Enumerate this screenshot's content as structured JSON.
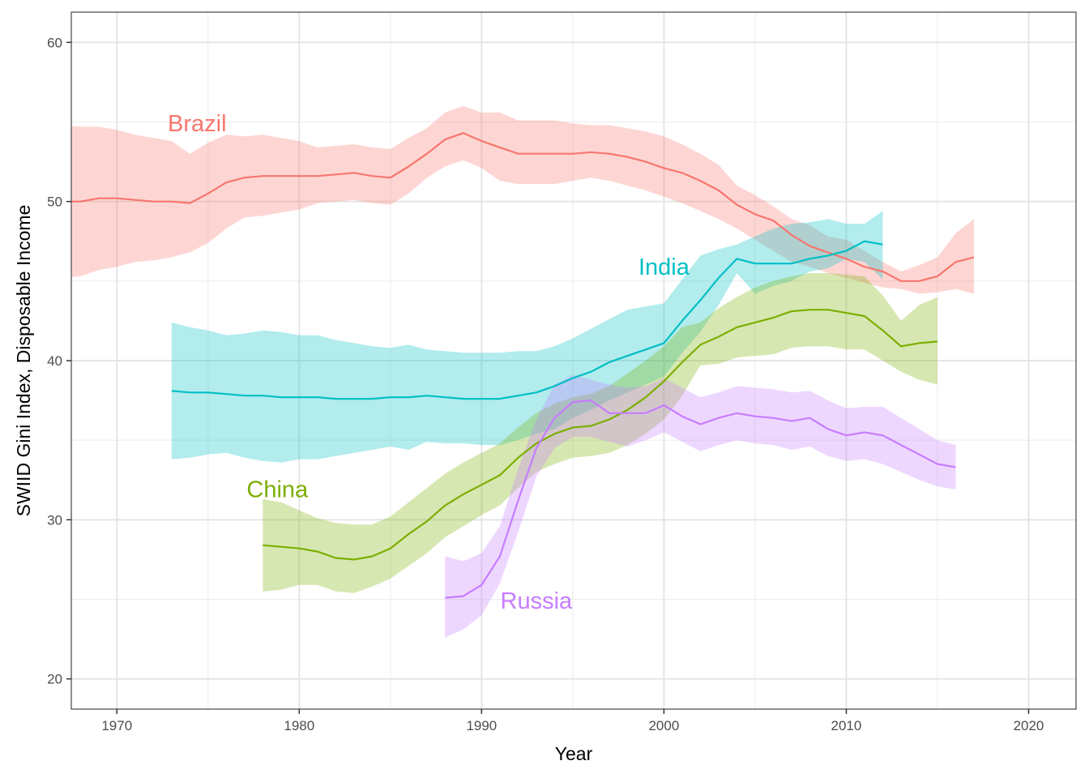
{
  "chart_data": {
    "type": "line",
    "title": "",
    "xlabel": "Year",
    "ylabel": "SWIID Gini Index, Disposable Income",
    "xlim": [
      1967.5,
      2022.6
    ],
    "ylim": [
      18.1,
      61.9
    ],
    "x_ticks": [
      1970,
      1980,
      1990,
      2000,
      2010,
      2020
    ],
    "x_tick_labels": [
      "1970",
      "1980",
      "1990",
      "2000",
      "2010",
      "2020"
    ],
    "x_minor_ticks": [
      1975,
      1985,
      1995,
      2005,
      2015
    ],
    "y_ticks": [
      20,
      30,
      40,
      50,
      60
    ],
    "y_tick_labels": [
      "20",
      "30",
      "40",
      "50",
      "60"
    ],
    "y_minor_ticks": [
      25,
      35,
      45,
      55
    ],
    "grid": true,
    "legend": "none (direct labels)",
    "series": [
      {
        "name": "Brazil",
        "color": "#F8766D",
        "label": {
          "text": "Brazil",
          "x": 1974.4,
          "y": 54.8
        },
        "x": [
          1967,
          1968,
          1969,
          1970,
          1971,
          1972,
          1973,
          1974,
          1975,
          1976,
          1977,
          1978,
          1979,
          1980,
          1981,
          1982,
          1983,
          1984,
          1985,
          1986,
          1987,
          1988,
          1989,
          1990,
          1991,
          1992,
          1993,
          1994,
          1995,
          1996,
          1997,
          1998,
          1999,
          2000,
          2001,
          2002,
          2003,
          2004,
          2005,
          2006,
          2007,
          2008,
          2009,
          2010,
          2011,
          2012,
          2013,
          2014,
          2015,
          2016,
          2017
        ],
        "values": [
          50.0,
          50.0,
          50.2,
          50.2,
          50.1,
          50.0,
          50.0,
          49.9,
          50.5,
          51.2,
          51.5,
          51.6,
          51.6,
          51.6,
          51.6,
          51.7,
          51.8,
          51.6,
          51.5,
          52.2,
          53.0,
          53.9,
          54.3,
          53.8,
          53.4,
          53.0,
          53.0,
          53.0,
          53.0,
          53.1,
          53.0,
          52.8,
          52.5,
          52.1,
          51.8,
          51.3,
          50.7,
          49.8,
          49.2,
          48.8,
          47.9,
          47.2,
          46.8,
          46.4,
          45.9,
          45.6,
          45.0,
          45.0,
          45.3,
          46.2,
          46.5
        ],
        "lower": [
          45.2,
          45.3,
          45.7,
          45.9,
          46.2,
          46.3,
          46.5,
          46.8,
          47.4,
          48.3,
          49.0,
          49.1,
          49.3,
          49.5,
          49.9,
          50.0,
          50.1,
          49.9,
          49.8,
          50.5,
          51.5,
          52.2,
          52.6,
          52.1,
          51.3,
          51.1,
          51.1,
          51.1,
          51.3,
          51.5,
          51.3,
          51.0,
          50.7,
          50.3,
          49.9,
          49.4,
          48.9,
          48.3,
          47.6,
          46.9,
          46.2,
          45.9,
          45.5,
          45.2,
          44.9,
          44.6,
          44.5,
          44.2,
          44.3,
          44.5,
          44.2
        ],
        "upper": [
          54.8,
          54.7,
          54.7,
          54.5,
          54.2,
          54.0,
          53.8,
          53.0,
          53.7,
          54.2,
          54.1,
          54.2,
          54.0,
          53.8,
          53.4,
          53.5,
          53.6,
          53.4,
          53.3,
          54.0,
          54.6,
          55.6,
          56.0,
          55.6,
          55.6,
          55.1,
          55.1,
          55.1,
          54.9,
          54.8,
          54.8,
          54.6,
          54.4,
          54.1,
          53.6,
          53.0,
          52.3,
          51.0,
          50.4,
          49.7,
          48.9,
          48.5,
          47.8,
          47.6,
          46.9,
          46.2,
          45.6,
          46.0,
          46.5,
          48.0,
          48.9
        ]
      },
      {
        "name": "India",
        "color": "#00BFC4",
        "label": {
          "text": "India",
          "x": 2000.0,
          "y": 45.8
        },
        "x": [
          1973,
          1974,
          1975,
          1976,
          1977,
          1978,
          1979,
          1980,
          1981,
          1982,
          1983,
          1984,
          1985,
          1986,
          1987,
          1988,
          1989,
          1990,
          1991,
          1992,
          1993,
          1994,
          1995,
          1996,
          1997,
          1998,
          1999,
          2000,
          2001,
          2002,
          2003,
          2004,
          2005,
          2006,
          2007,
          2008,
          2009,
          2010,
          2011,
          2012
        ],
        "values": [
          38.1,
          38.0,
          38.0,
          37.9,
          37.8,
          37.8,
          37.7,
          37.7,
          37.7,
          37.6,
          37.6,
          37.6,
          37.7,
          37.7,
          37.8,
          37.7,
          37.6,
          37.6,
          37.6,
          37.8,
          38.0,
          38.4,
          38.9,
          39.3,
          39.9,
          40.3,
          40.7,
          41.1,
          42.5,
          43.8,
          45.2,
          46.4,
          46.1,
          46.1,
          46.1,
          46.4,
          46.6,
          46.9,
          47.5,
          47.3
        ],
        "lower": [
          33.8,
          33.9,
          34.1,
          34.2,
          33.9,
          33.7,
          33.6,
          33.8,
          33.8,
          34.0,
          34.2,
          34.4,
          34.6,
          34.4,
          34.9,
          34.8,
          34.8,
          34.7,
          34.7,
          35.0,
          35.4,
          35.7,
          36.4,
          36.9,
          37.5,
          38.0,
          38.5,
          39.0,
          40.5,
          41.8,
          43.5,
          45.5,
          44.2,
          44.7,
          45.0,
          45.6,
          45.8,
          46.4,
          46.2,
          45.1
        ],
        "upper": [
          42.4,
          42.1,
          41.9,
          41.6,
          41.7,
          41.9,
          41.8,
          41.6,
          41.6,
          41.3,
          41.1,
          40.9,
          40.8,
          41.0,
          40.7,
          40.6,
          40.5,
          40.5,
          40.5,
          40.6,
          40.6,
          40.9,
          41.4,
          42.0,
          42.6,
          43.2,
          43.4,
          43.6,
          45.1,
          46.6,
          47.0,
          47.3,
          47.8,
          48.3,
          48.6,
          48.7,
          48.9,
          48.6,
          48.6,
          49.4
        ]
      },
      {
        "name": "China",
        "color": "#7CAE00",
        "label": {
          "text": "China",
          "x": 1978.8,
          "y": 31.8
        },
        "x": [
          1978,
          1979,
          1980,
          1981,
          1982,
          1983,
          1984,
          1985,
          1986,
          1987,
          1988,
          1989,
          1990,
          1991,
          1992,
          1993,
          1994,
          1995,
          1996,
          1997,
          1998,
          1999,
          2000,
          2001,
          2002,
          2003,
          2004,
          2005,
          2006,
          2007,
          2008,
          2009,
          2010,
          2011,
          2012,
          2013,
          2014,
          2015
        ],
        "values": [
          28.4,
          28.3,
          28.2,
          28.0,
          27.6,
          27.5,
          27.7,
          28.2,
          29.1,
          29.9,
          30.9,
          31.6,
          32.2,
          32.8,
          33.9,
          34.8,
          35.4,
          35.8,
          35.9,
          36.3,
          36.9,
          37.7,
          38.7,
          39.9,
          41.0,
          41.5,
          42.1,
          42.4,
          42.7,
          43.1,
          43.2,
          43.2,
          43.0,
          42.8,
          41.9,
          40.9,
          41.1,
          41.2
        ],
        "lower": [
          25.5,
          25.6,
          25.9,
          25.9,
          25.5,
          25.4,
          25.8,
          26.3,
          27.1,
          27.9,
          28.9,
          29.6,
          30.3,
          30.9,
          32.0,
          33.0,
          33.5,
          33.9,
          34.0,
          34.2,
          34.7,
          35.4,
          36.3,
          37.8,
          39.7,
          39.8,
          40.2,
          40.3,
          40.4,
          40.8,
          40.9,
          40.9,
          40.7,
          40.7,
          40.0,
          39.3,
          38.8,
          38.5
        ],
        "upper": [
          31.3,
          31.1,
          30.6,
          30.1,
          29.8,
          29.7,
          29.7,
          30.2,
          31.1,
          32.0,
          32.9,
          33.6,
          34.2,
          34.8,
          35.8,
          36.7,
          37.3,
          37.7,
          37.9,
          38.4,
          39.2,
          40.0,
          40.9,
          42.1,
          42.4,
          43.3,
          44.0,
          44.6,
          45.0,
          45.3,
          45.5,
          45.5,
          45.4,
          45.3,
          44.1,
          42.5,
          43.5,
          44.0
        ]
      },
      {
        "name": "Russia",
        "color": "#C77CFF",
        "label": {
          "text": "Russia",
          "x": 1993.0,
          "y": 24.8
        },
        "x": [
          1988,
          1989,
          1990,
          1991,
          1992,
          1993,
          1994,
          1995,
          1996,
          1997,
          1998,
          1999,
          2000,
          2001,
          2002,
          2003,
          2004,
          2005,
          2006,
          2007,
          2008,
          2009,
          2010,
          2011,
          2012,
          2013,
          2014,
          2015,
          2016
        ],
        "values": [
          25.1,
          25.2,
          25.9,
          27.7,
          31.2,
          34.5,
          36.4,
          37.4,
          37.5,
          36.7,
          36.7,
          36.7,
          37.2,
          36.5,
          36.0,
          36.4,
          36.7,
          36.5,
          36.4,
          36.2,
          36.4,
          35.7,
          35.3,
          35.5,
          35.3,
          34.7,
          34.1,
          33.5,
          33.3
        ],
        "lower": [
          22.6,
          23.1,
          24.0,
          26.0,
          29.2,
          32.7,
          34.5,
          35.2,
          35.2,
          34.9,
          34.6,
          35.0,
          35.5,
          34.9,
          34.3,
          34.7,
          35.0,
          34.8,
          34.7,
          34.4,
          34.6,
          34.0,
          33.7,
          33.8,
          33.5,
          33.0,
          32.5,
          32.1,
          31.9
        ],
        "upper": [
          27.7,
          27.4,
          27.9,
          29.6,
          33.2,
          36.3,
          38.5,
          39.1,
          38.8,
          38.5,
          38.3,
          38.4,
          38.9,
          38.3,
          37.7,
          38.0,
          38.4,
          38.3,
          38.2,
          38.0,
          38.1,
          37.5,
          37.0,
          37.1,
          37.1,
          36.4,
          35.7,
          35.0,
          34.7
        ]
      }
    ]
  }
}
